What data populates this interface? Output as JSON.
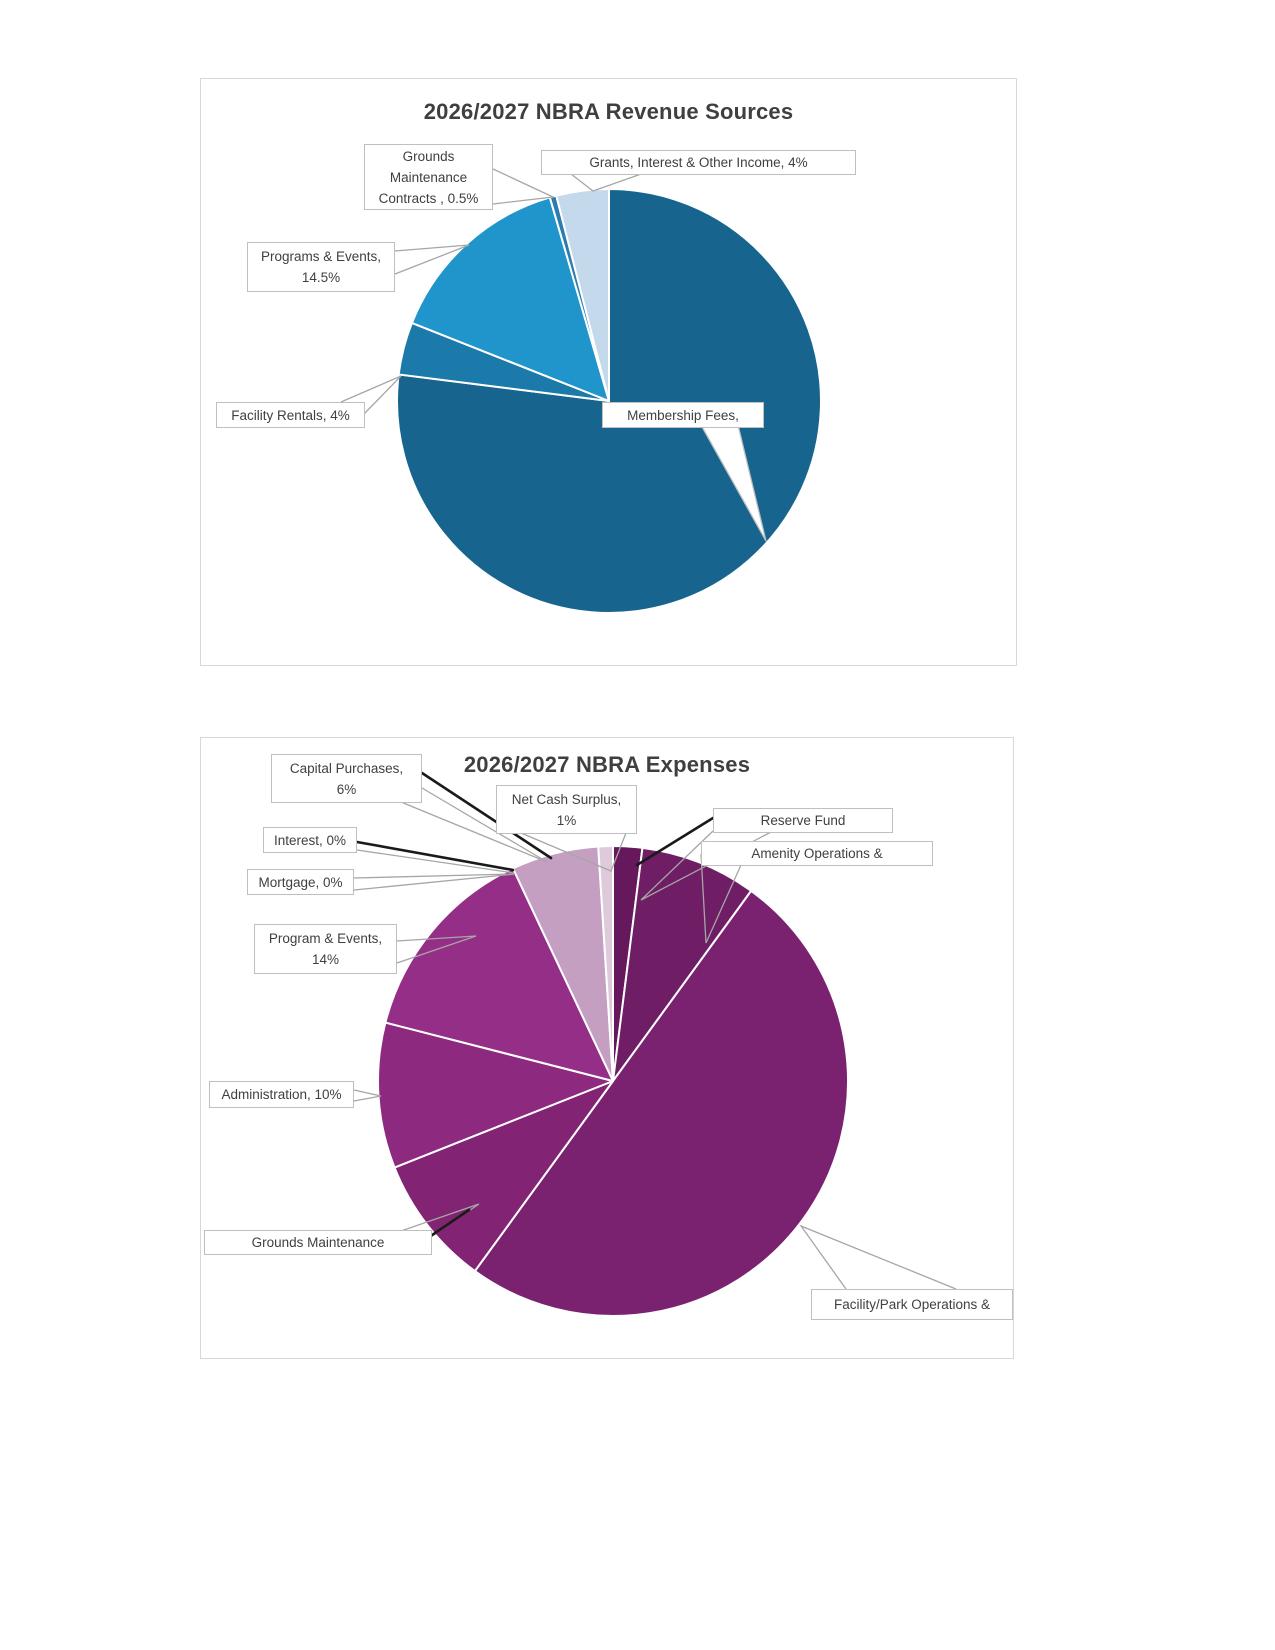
{
  "chart_data": [
    {
      "type": "pie",
      "title": "2026/2027 NBRA Revenue Sources",
      "legend": "none",
      "slices": [
        {
          "label": "Membership Fees",
          "pct": 77,
          "color": "#17658e",
          "callout_lines": [
            "Membership Fees,"
          ]
        },
        {
          "label": "Facility Rentals",
          "pct": 4,
          "color": "#1b7aa9",
          "callout_lines": [
            "Facility Rentals, 4%"
          ]
        },
        {
          "label": "Programs & Events",
          "pct": 14.5,
          "color": "#2095cc",
          "callout_lines": [
            "Programs & Events,",
            "14.5%"
          ]
        },
        {
          "label": "Grounds Maintenance Contracts",
          "pct": 0.5,
          "color": "#2b7cb0",
          "callout_lines": [
            "Grounds",
            "Maintenance",
            "Contracts , 0.5%"
          ]
        },
        {
          "label": "Grants, Interest & Other Income",
          "pct": 4,
          "color": "#c5d9ed",
          "callout_lines": [
            "Grants, Interest & Other Income, 4%"
          ]
        }
      ]
    },
    {
      "type": "pie",
      "title": "2026/2027 NBRA Expenses",
      "legend": "none",
      "slices": [
        {
          "label": "Reserve Fund",
          "pct": 2,
          "color": "#65185c",
          "callout_lines": [
            "Reserve Fund"
          ]
        },
        {
          "label": "Amenity Operations &",
          "pct": 8,
          "color": "#6f1d65",
          "callout_lines": [
            "Amenity Operations &"
          ]
        },
        {
          "label": "Facility/Park Operations &",
          "pct": 50,
          "color": "#7a2170",
          "callout_lines": [
            "Facility/Park Operations &"
          ]
        },
        {
          "label": "Grounds Maintenance",
          "pct": 9,
          "color": "#822473",
          "callout_lines": [
            "Grounds Maintenance"
          ]
        },
        {
          "label": "Administration",
          "pct": 10,
          "color": "#8e2980",
          "callout_lines": [
            "Administration, 10%"
          ]
        },
        {
          "label": "Program & Events",
          "pct": 14,
          "color": "#952e87",
          "callout_lines": [
            "Program & Events,",
            "14%"
          ]
        },
        {
          "label": "Mortgage",
          "pct": 0,
          "color": "#9b3a8d",
          "callout_lines": [
            "Mortgage, 0%"
          ]
        },
        {
          "label": "Interest",
          "pct": 0,
          "color": "#9b3a8d",
          "callout_lines": [
            "Interest, 0%"
          ]
        },
        {
          "label": "Capital Purchases",
          "pct": 6,
          "color": "#c59fc2",
          "callout_lines": [
            "Capital Purchases,",
            "6%"
          ]
        },
        {
          "label": "Net Cash Surplus",
          "pct": 1,
          "color": "#ddcbdc",
          "callout_lines": [
            "Net Cash Surplus,",
            "1%"
          ]
        }
      ]
    }
  ]
}
